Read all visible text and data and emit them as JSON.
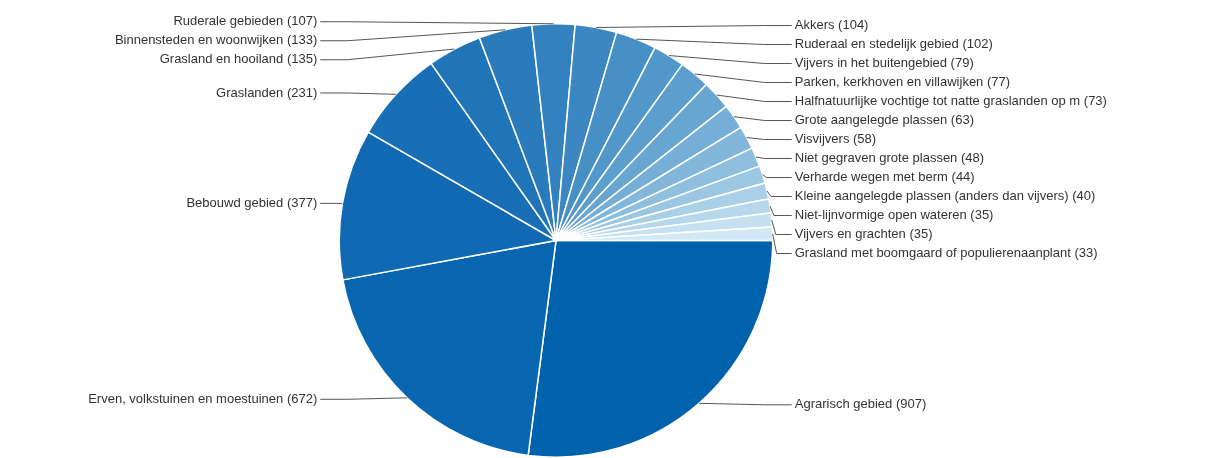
{
  "chart_data": {
    "type": "pie",
    "categories": [
      "Agrarisch gebied (907)",
      "Erven, volkstuinen en moestuinen (672)",
      "Bebouwd gebied (377)",
      "Graslanden (231)",
      "Grasland en hooiland (135)",
      "Binnensteden en woonwijken (133)",
      "Ruderale gebieden (107)",
      "Akkers (104)",
      "Ruderaal en stedelijk gebied (102)",
      "Vijvers in het buitengebied (79)",
      "Parken, kerkhoven en villawijken (77)",
      "Halfnatuurlijke vochtige tot natte graslanden op m (73)",
      "Grote aangelegde plassen (63)",
      "Visvijvers (58)",
      "Niet gegraven grote plassen (48)",
      "Verharde wegen met berm (44)",
      "Kleine aangelegde plassen (anders dan vijvers) (40)",
      "Niet-lijnvormige open wateren (35)",
      "Vijvers en grachten (35)",
      "Grasland met boomgaard of populierenaanplant (33)"
    ],
    "values": [
      907,
      672,
      377,
      231,
      135,
      133,
      107,
      104,
      102,
      79,
      77,
      73,
      63,
      58,
      48,
      44,
      40,
      35,
      35,
      33
    ],
    "colors": [
      "#0062ad",
      "#0866b0",
      "#1069b2",
      "#186fb5",
      "#2075b8",
      "#2a7bbb",
      "#3381be",
      "#3c87c1",
      "#4790c6",
      "#5297ca",
      "#5c9ece",
      "#68a6d2",
      "#75aed6",
      "#82b6da",
      "#8fbfdf",
      "#9cc7e3",
      "#aad0e8",
      "#b7d8ec",
      "#c5e0f1",
      "#d3e8f5"
    ],
    "legend": false
  }
}
